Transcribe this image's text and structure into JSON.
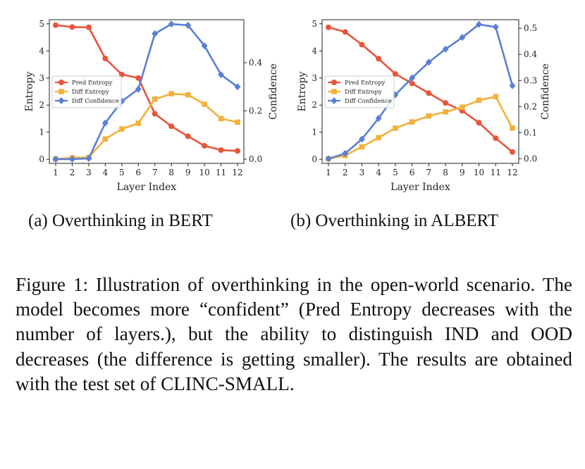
{
  "chart_data": [
    {
      "type": "line",
      "xlabel": "Layer Index",
      "ylabel": "Entropy",
      "ylabel_right": "Confidence",
      "x": [
        1,
        2,
        3,
        4,
        5,
        6,
        7,
        8,
        9,
        10,
        11,
        12
      ],
      "ylim": [
        -0.15,
        5.15
      ],
      "yticks": [
        "0",
        "1",
        "2",
        "3",
        "4",
        "5"
      ],
      "ylim_right": [
        -0.0175,
        0.578
      ],
      "yticks_right": [
        "0.0",
        "0.2",
        "0.4"
      ],
      "legend_position": "center-left",
      "series": [
        {
          "name": "Pred Entropy",
          "axis": "left",
          "color": "#e8553a",
          "marker": "circle",
          "values": [
            4.95,
            4.88,
            4.87,
            3.72,
            3.13,
            3.0,
            1.68,
            1.22,
            0.85,
            0.5,
            0.34,
            0.31
          ]
        },
        {
          "name": "Diff Entropy",
          "axis": "left",
          "color": "#f2b13b",
          "marker": "square",
          "values": [
            0.01,
            0.06,
            0.07,
            0.75,
            1.12,
            1.33,
            2.22,
            2.42,
            2.38,
            2.03,
            1.5,
            1.37
          ]
        },
        {
          "name": "Diff Confidence",
          "axis": "right",
          "color": "#5b7fd6",
          "marker": "diamond",
          "values": [
            0.0,
            0.0,
            0.003,
            0.15,
            0.24,
            0.29,
            0.52,
            0.56,
            0.555,
            0.47,
            0.35,
            0.3
          ]
        }
      ]
    },
    {
      "type": "line",
      "xlabel": "Layer Index",
      "ylabel": "Entropy",
      "ylabel_right": "Confidence",
      "x": [
        1,
        2,
        3,
        4,
        5,
        6,
        7,
        8,
        9,
        10,
        11,
        12
      ],
      "ylim": [
        -0.15,
        5.15
      ],
      "yticks": [
        "0",
        "1",
        "2",
        "3",
        "4",
        "5"
      ],
      "ylim_right": [
        -0.018,
        0.533
      ],
      "yticks_right": [
        "0.0",
        "0.1",
        "0.2",
        "0.3",
        "0.4",
        "0.5"
      ],
      "legend_position": "center-left",
      "series": [
        {
          "name": "Pred Entropy",
          "axis": "left",
          "color": "#e8553a",
          "marker": "circle",
          "values": [
            4.87,
            4.7,
            4.23,
            3.71,
            3.15,
            2.8,
            2.44,
            2.08,
            1.79,
            1.35,
            0.78,
            0.27
          ]
        },
        {
          "name": "Diff Entropy",
          "axis": "left",
          "color": "#f2b13b",
          "marker": "square",
          "values": [
            0.02,
            0.14,
            0.46,
            0.8,
            1.15,
            1.38,
            1.6,
            1.75,
            1.92,
            2.18,
            2.31,
            1.15
          ]
        },
        {
          "name": "Diff Confidence",
          "axis": "right",
          "color": "#5b7fd6",
          "marker": "diamond",
          "values": [
            0.0,
            0.02,
            0.075,
            0.155,
            0.245,
            0.31,
            0.37,
            0.42,
            0.465,
            0.515,
            0.505,
            0.28
          ]
        }
      ]
    }
  ],
  "subcaptions": {
    "a": "(a)  Overthinking in BERT",
    "b": "(b)  Overthinking in ALBERT"
  },
  "caption": "Figure 1: Illustration of overthinking in the open-world scenario. The model becomes more “confident” (Pred Entropy decreases with the number of layers.), but the ability to distinguish IND and OOD decreases (the difference is getting smaller). The results are obtained with the test set of CLINC-SMALL."
}
